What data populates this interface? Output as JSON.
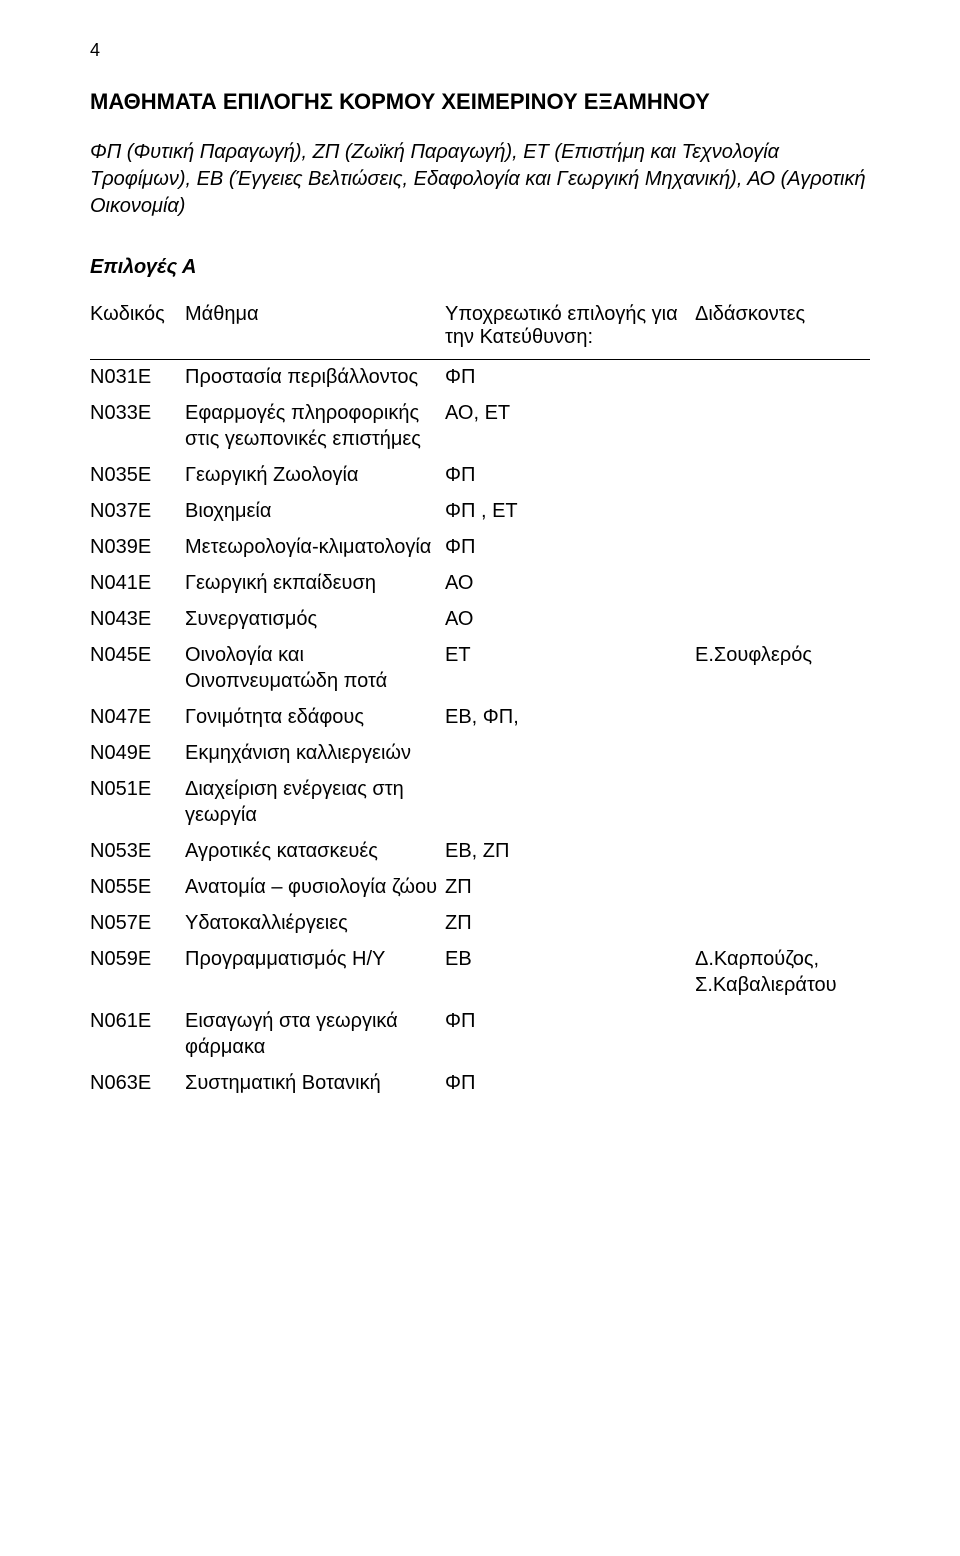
{
  "page_number": "4",
  "title": "ΜΑΘΗΜΑΤΑ ΕΠΙΛΟΓΗΣ ΚΟΡΜΟΥ ΧΕΙΜΕΡΙΝΟΥ ΕΞΑΜΗΝΟΥ",
  "legend": "ΦΠ (Φυτική Παραγωγή), ΖΠ (Ζωϊκή Παραγωγή), ΕΤ (Επιστήμη και Τεχνολογία Τροφίμων), ΕΒ (Έγγειες Βελτιώσεις, Εδαφολογία και Γεωργική Μηχανική), ΑΟ (Αγροτική Οικονομία)",
  "section_label": "Επιλογές Α",
  "headers": {
    "code": "Κωδικός",
    "course": "Μάθημα",
    "requirement": "Υποχρεωτικό επιλογής για την Κατεύθυνση:",
    "teachers": "Διδάσκοντες"
  },
  "rows": [
    {
      "code": "Ν031Ε",
      "course": "Προστασία περιβάλλοντος",
      "req": "ΦΠ",
      "teach": ""
    },
    {
      "code": "Ν033Ε",
      "course": "Εφαρμογές πληροφορικής στις γεωπονικές επιστήμες",
      "req": "ΑΟ, ΕΤ",
      "teach": ""
    },
    {
      "code": "Ν035Ε",
      "course": "Γεωργική Ζωολογία",
      "req": "ΦΠ",
      "teach": ""
    },
    {
      "code": "Ν037Ε",
      "course": "Βιοχημεία",
      "req": "ΦΠ , ΕΤ",
      "teach": ""
    },
    {
      "code": "Ν039Ε",
      "course": "Μετεωρολογία-κλιματολογία",
      "req": "ΦΠ",
      "teach": ""
    },
    {
      "code": "Ν041Ε",
      "course": "Γεωργική εκπαίδευση",
      "req": "ΑΟ",
      "teach": ""
    },
    {
      "code": "Ν043Ε",
      "course": "Συνεργατισμός",
      "req": "ΑΟ",
      "teach": ""
    },
    {
      "code": "Ν045Ε",
      "course": "Οινολογία και Οινοπνευματώδη ποτά",
      "req": "ΕΤ",
      "teach": "Ε.Σουφλερός"
    },
    {
      "code": "Ν047Ε",
      "course": "Γονιμότητα εδάφους",
      "req": "ΕΒ, ΦΠ,",
      "teach": ""
    },
    {
      "code": "Ν049Ε",
      "course": "Εκμηχάνιση καλλιεργειών",
      "req": "",
      "teach": ""
    },
    {
      "code": "Ν051Ε",
      "course": "Διαχείριση ενέργειας στη γεωργία",
      "req": "",
      "teach": ""
    },
    {
      "code": "Ν053Ε",
      "course": "Αγροτικές κατασκευές",
      "req": "ΕΒ,  ΖΠ",
      "teach": ""
    },
    {
      "code": "Ν055Ε",
      "course": "Ανατομία – φυσιολογία ζώου",
      "req": "ΖΠ",
      "teach": ""
    },
    {
      "code": "Ν057Ε",
      "course": "Υδατοκαλλιέργειες",
      "req": "ΖΠ",
      "teach": ""
    },
    {
      "code": "Ν059Ε",
      "course": "Προγραμματισμός Η/Υ",
      "req": "ΕΒ",
      "teach": "Δ.Καρπούζος, Σ.Καβαλιεράτου"
    },
    {
      "code": "Ν061Ε",
      "course": "Εισαγωγή στα γεωργικά φάρμακα",
      "req": "ΦΠ",
      "teach": ""
    },
    {
      "code": "Ν063Ε",
      "course": "Συστηματική Βοτανική",
      "req": "ΦΠ",
      "teach": ""
    }
  ],
  "colors": {
    "text": "#000000",
    "background": "#ffffff",
    "rule": "#000000"
  },
  "fonts": {
    "family": "Arial",
    "title_size_pt": 16,
    "body_size_pt": 15,
    "pagenum_size_pt": 13
  }
}
